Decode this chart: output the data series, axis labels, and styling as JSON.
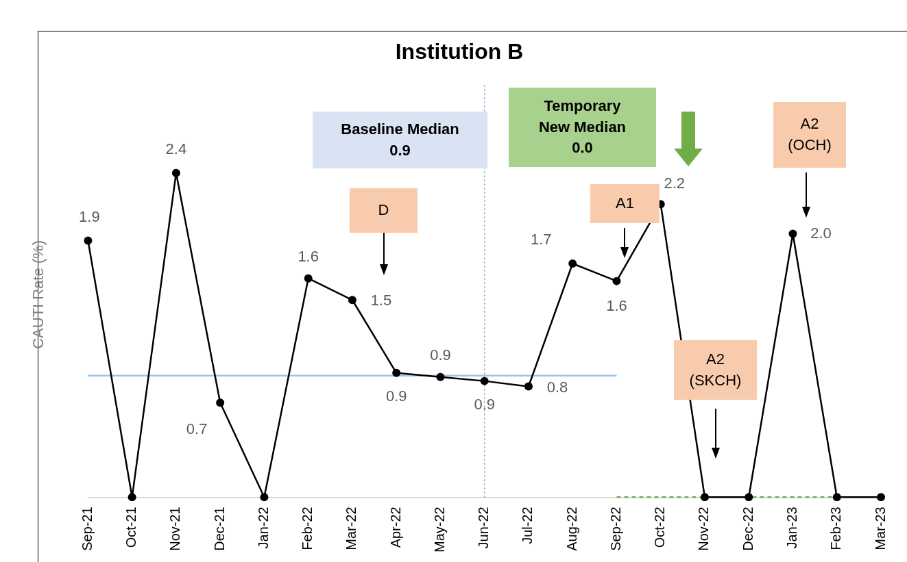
{
  "chart_data": {
    "type": "line",
    "title": "Institution B",
    "ylabel": "CAUTI Rate (%)",
    "categories": [
      "Sep-21",
      "Oct-21",
      "Nov-21",
      "Dec-21",
      "Jan-22",
      "Feb-22",
      "Mar-22",
      "Apr-22",
      "May-22",
      "Jun-22",
      "Jul-22",
      "Aug-22",
      "Sep-22",
      "Oct-22",
      "Nov-22",
      "Dec-22",
      "Jan-23",
      "Feb-23",
      "Mar-23"
    ],
    "series": [
      {
        "color": "#000000",
        "marker": "circle",
        "values": [
          1.9,
          0,
          2.4,
          0.7,
          0,
          1.62,
          1.46,
          0.92,
          0.89,
          0.86,
          0.82,
          1.73,
          1.6,
          2.17,
          0,
          0,
          1.95,
          0,
          0
        ],
        "value_labels": [
          "1.9",
          null,
          "2.4",
          "0.7",
          null,
          "1.6",
          "1.5",
          "0.9",
          "0.9",
          "0.9",
          "0.8",
          "1.7",
          "1.6",
          "2.2",
          null,
          null,
          "2.0",
          null,
          null
        ]
      },
      {
        "color": "#9dc3e6",
        "marker": "none",
        "values": [
          0.9,
          0.9,
          0.9,
          0.9,
          0.9,
          0.9,
          0.9,
          0.9,
          0.9,
          0.9,
          0.9,
          0.9,
          0.9,
          null,
          null,
          null,
          null,
          null,
          null
        ]
      },
      {
        "color": "#70ad47",
        "marker": "none",
        "line_style": "dashed",
        "values": [
          null,
          null,
          null,
          null,
          null,
          null,
          null,
          null,
          null,
          null,
          null,
          null,
          0,
          0,
          0,
          0,
          0,
          0,
          0
        ]
      }
    ],
    "tick_labels": "x",
    "grid": false,
    "legend": false,
    "ref_lines": [
      {
        "axis": "x",
        "value": "Jun-22",
        "color": "#5b9bd5",
        "line_style": "dotted"
      }
    ],
    "annotations": [
      "Baseline Median\n0.9",
      "Temporary\nNew Median\n0.0",
      "D",
      "A1",
      "A2\n(SKCH)",
      "A2\n(OCH)"
    ]
  }
}
